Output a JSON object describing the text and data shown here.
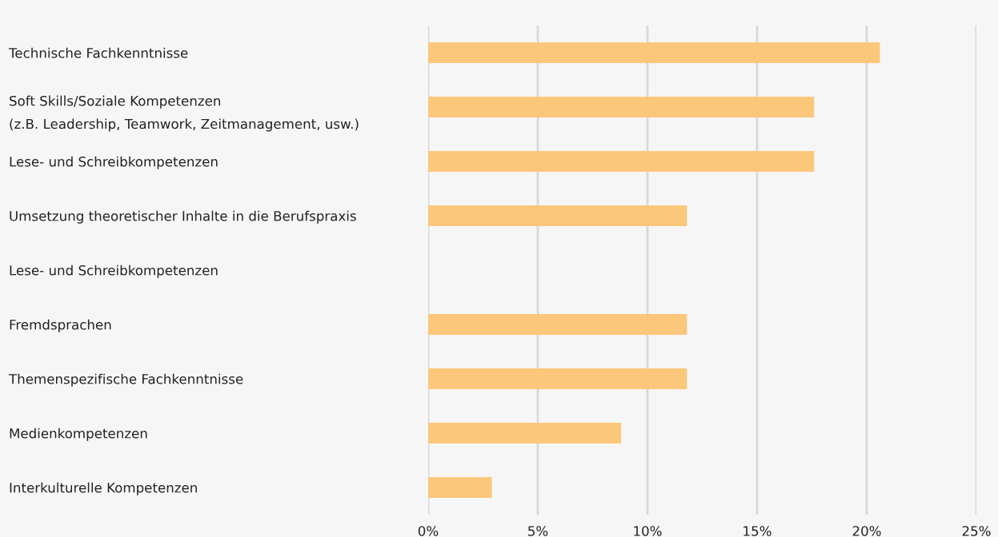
{
  "chart_data": {
    "type": "bar",
    "orientation": "horizontal",
    "categories": [
      "Technische Fachkenntnisse",
      "Soft Skills/Soziale Kompetenzen\n(z.B. Leadership, Teamwork, Zeitmanagement, usw.)",
      "Lese- und Schreibkompetenzen",
      "Umsetzung theoretischer Inhalte in die Berufspraxis",
      "Lese- und Schreibkompetenzen",
      "Fremdsprachen",
      "Themenspezifische Fachkenntnisse",
      "Medienkompetenzen",
      "Interkulturelle Kompetenzen"
    ],
    "values": [
      20.6,
      17.6,
      17.6,
      11.8,
      null,
      11.8,
      11.8,
      8.8,
      2.9
    ],
    "color": "#fbc77a",
    "xlim": [
      0,
      25
    ],
    "xticks": [
      {
        "value": 0,
        "label": "0%"
      },
      {
        "value": 5,
        "label": "5%"
      },
      {
        "value": 10,
        "label": "10%"
      },
      {
        "value": 15,
        "label": "15%"
      },
      {
        "value": 20,
        "label": "20%"
      },
      {
        "value": 25,
        "label": "25%"
      }
    ],
    "grid": "x"
  }
}
